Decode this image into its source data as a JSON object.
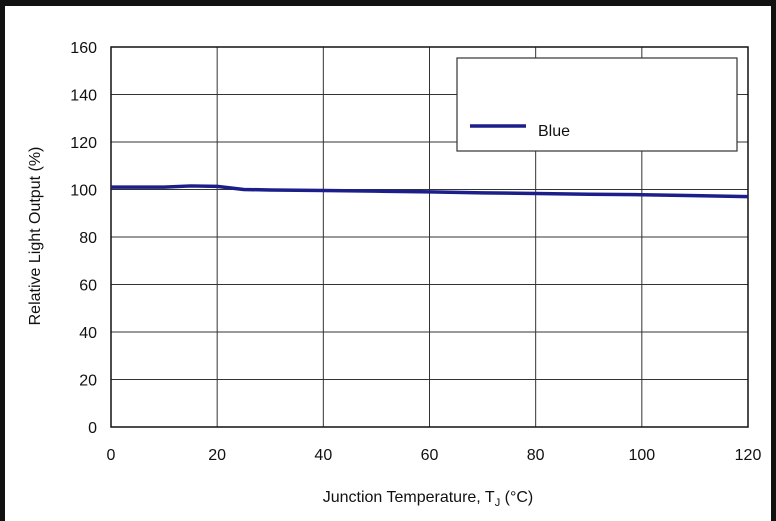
{
  "chart_data": {
    "type": "line",
    "title": "",
    "xlabel": "Junction Temperature, T",
    "xlabel_sub": "J",
    "xlabel_unit": " (°C)",
    "ylabel": "Relative Light Output (%)",
    "xlim": [
      0,
      120
    ],
    "ylim": [
      0,
      160
    ],
    "xticks": [
      0,
      20,
      40,
      60,
      80,
      100,
      120
    ],
    "yticks": [
      0,
      20,
      40,
      60,
      80,
      100,
      120,
      140,
      160
    ],
    "grid": true,
    "legend_position": "top-right",
    "series": [
      {
        "name": "Blue",
        "color": "#1c1f8a",
        "x": [
          0,
          10,
          15,
          20,
          25,
          30,
          40,
          50,
          60,
          70,
          80,
          90,
          100,
          110,
          120
        ],
        "y": [
          101,
          101,
          101.5,
          101.3,
          100,
          99.8,
          99.6,
          99.3,
          99,
          98.6,
          98.3,
          98,
          97.8,
          97.4,
          97
        ]
      }
    ]
  }
}
